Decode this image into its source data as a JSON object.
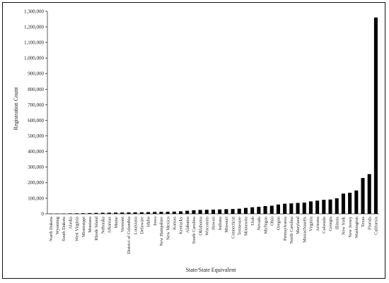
{
  "chart_data": {
    "type": "bar",
    "title": "",
    "xlabel": "State/State Equivalent",
    "ylabel": "Registration Count",
    "ylim": [
      0,
      1300000
    ],
    "yticks": [
      0,
      100000,
      200000,
      300000,
      400000,
      500000,
      600000,
      700000,
      800000,
      900000,
      1000000,
      1100000,
      1200000,
      1300000
    ],
    "ytick_labels": [
      "0",
      "100,000",
      "200,000",
      "300,000",
      "400,000",
      "500,000",
      "600,000",
      "700,000",
      "800,000",
      "900,000",
      "1,000,000",
      "1,100,000",
      "1,200,000",
      "1,300,000"
    ],
    "grid": false,
    "bar_color": "#000000",
    "categories": [
      "North Dakota",
      "Wyoming",
      "South Dakota",
      "Alaska",
      "West Virginia",
      "Mississippi",
      "Montana",
      "Rhode Island",
      "Nebraska",
      "Arkansas",
      "Maine",
      "Vermont",
      "District of Columbia",
      "Louisiana",
      "Delaware",
      "Idaho",
      "Iowa",
      "New Hampshire",
      "New Mexico",
      "Kansas",
      "Kentucky",
      "Alabama",
      "South Carolina",
      "Oklahoma",
      "Wisconsin",
      "Hawaii",
      "Indiana",
      "Missouri",
      "Connecticut",
      "Tennessee",
      "Minnesota",
      "Utah",
      "Nevada",
      "Michigan",
      "Ohio",
      "Oregon",
      "Pennsylvania",
      "North Carolina",
      "Maryland",
      "Massachusetts",
      "Virginia",
      "Arizona",
      "Colorado",
      "Georgia",
      "Illinois",
      "New York",
      "New Jersey",
      "Washington",
      "Texas",
      "Florida",
      "California"
    ],
    "values": [
      1000,
      1500,
      2000,
      3000,
      3500,
      4000,
      5000,
      6000,
      7000,
      7500,
      8000,
      8500,
      9000,
      9500,
      10000,
      11000,
      12000,
      12500,
      13000,
      14000,
      16000,
      20000,
      23000,
      25000,
      26000,
      27000,
      28000,
      30000,
      31000,
      33000,
      38000,
      42000,
      45000,
      50000,
      52000,
      60000,
      65000,
      67000,
      70000,
      72000,
      80000,
      85000,
      90000,
      92000,
      100000,
      130000,
      135000,
      150000,
      230000,
      255000,
      1260000
    ]
  }
}
